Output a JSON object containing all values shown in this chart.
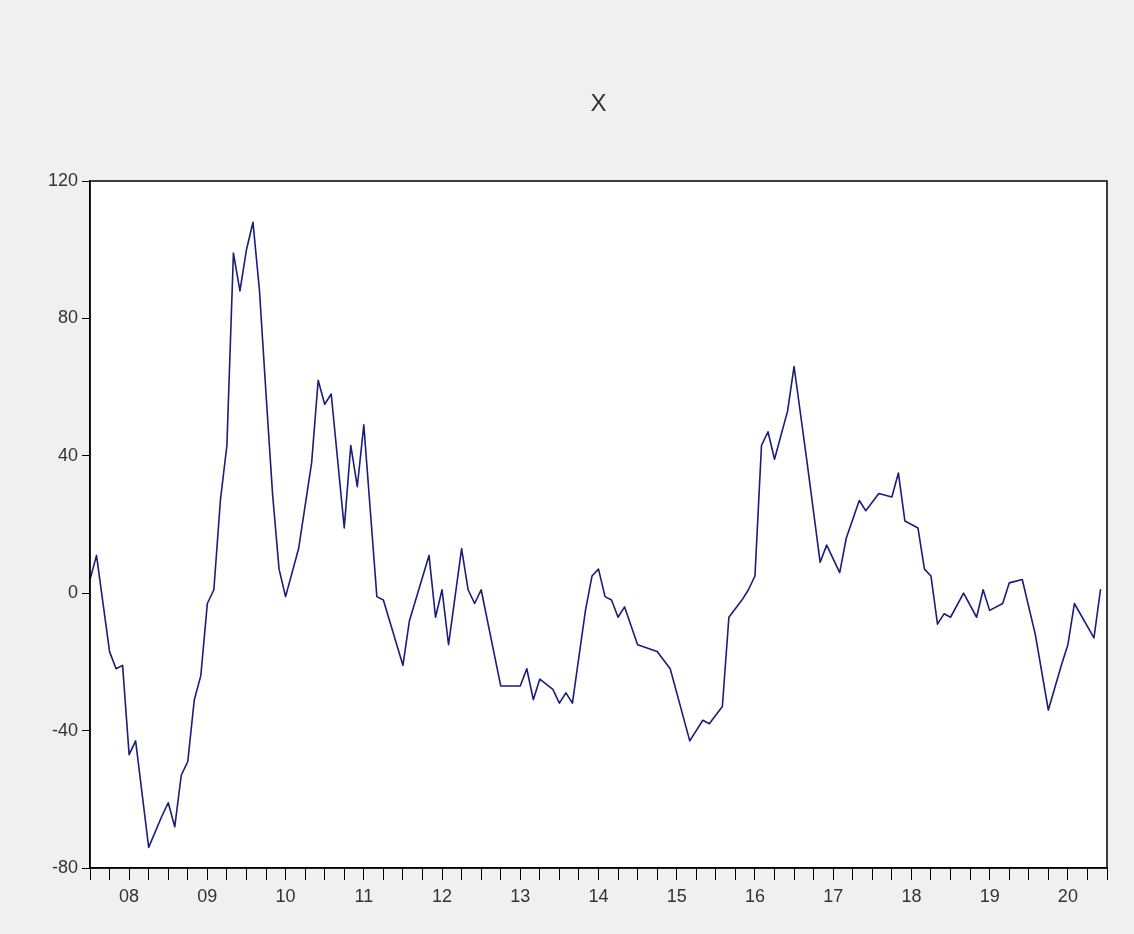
{
  "chart_data": {
    "type": "line",
    "title": "X",
    "x": [
      "2008-01",
      "2008-02",
      "2008-04",
      "2008-05",
      "2008-06",
      "2008-07",
      "2008-08",
      "2008-10",
      "2008-12",
      "2009-01",
      "2009-02",
      "2009-03",
      "2009-04",
      "2009-05",
      "2009-06",
      "2009-07",
      "2009-08",
      "2009-09",
      "2009-10",
      "2009-11",
      "2009-12",
      "2010-01",
      "2010-02",
      "2010-03",
      "2010-04",
      "2010-05",
      "2010-06",
      "2010-07",
      "2010-09",
      "2010-11",
      "2010-12",
      "2011-01",
      "2011-02",
      "2011-04",
      "2011-05",
      "2011-06",
      "2011-07",
      "2011-09",
      "2011-10",
      "2012-01",
      "2012-02",
      "2012-05",
      "2012-06",
      "2012-07",
      "2012-08",
      "2012-10",
      "2012-11",
      "2012-12",
      "2013-01",
      "2013-04",
      "2013-06",
      "2013-07",
      "2013-08",
      "2013-09",
      "2013-10",
      "2013-12",
      "2014-01",
      "2014-02",
      "2014-03",
      "2014-05",
      "2014-06",
      "2014-07",
      "2014-08",
      "2014-09",
      "2014-10",
      "2014-11",
      "2015-01",
      "2015-04",
      "2015-06",
      "2015-09",
      "2015-11",
      "2015-12",
      "2016-02",
      "2016-03",
      "2016-05",
      "2016-06",
      "2016-07",
      "2016-08",
      "2016-09",
      "2016-10",
      "2016-12",
      "2017-01",
      "2017-03",
      "2017-05",
      "2017-06",
      "2017-08",
      "2017-09",
      "2017-11",
      "2017-12",
      "2018-02",
      "2018-04",
      "2018-05",
      "2018-06",
      "2018-08",
      "2018-09",
      "2018-10",
      "2018-11",
      "2018-12",
      "2019-01",
      "2019-03",
      "2019-05",
      "2019-06",
      "2019-07",
      "2019-09",
      "2019-10",
      "2019-12",
      "2020-02",
      "2020-04",
      "2020-06",
      "2020-07",
      "2020-08",
      "2020-11",
      "2020-12"
    ],
    "series": [
      {
        "color": "#1c1c7a",
        "values": [
          4,
          11,
          -17,
          -22,
          -21,
          -47,
          -43,
          -74,
          -65,
          -61,
          -68,
          -53,
          -49,
          -31,
          -24,
          -3,
          1,
          27,
          43,
          99,
          88,
          100,
          108,
          88,
          58,
          29,
          7,
          -1,
          13,
          38,
          62,
          55,
          58,
          19,
          43,
          31,
          49,
          -1,
          -2,
          -21,
          -8,
          11,
          -7,
          1,
          -15,
          13,
          1,
          -3,
          1,
          -27,
          -27,
          -27,
          -22,
          -31,
          -25,
          -28,
          -32,
          -29,
          -32,
          -5,
          5,
          7,
          -1,
          -2,
          -7,
          -4,
          -15,
          -17,
          -22,
          -43,
          -37,
          -38,
          -33,
          -7,
          -2,
          1,
          5,
          43,
          47,
          39,
          53,
          66,
          38,
          9,
          14,
          6,
          16,
          27,
          24,
          29,
          28,
          35,
          21,
          19,
          7,
          5,
          -9,
          -6,
          -7,
          0,
          -7,
          1,
          -5,
          -3,
          3,
          4,
          -12,
          -34,
          -21,
          -15,
          -3,
          -13,
          1
        ]
      }
    ],
    "xlim": [
      "2008-01",
      "2021-01"
    ],
    "xticks": [
      {
        "value": "2008-01",
        "label": null
      },
      {
        "value": "2008-04",
        "label": null
      },
      {
        "value": "2008-07",
        "label": "08"
      },
      {
        "value": "2008-10",
        "label": null
      },
      {
        "value": "2009-01",
        "label": null
      },
      {
        "value": "2009-04",
        "label": null
      },
      {
        "value": "2009-07",
        "label": "09"
      },
      {
        "value": "2009-10",
        "label": null
      },
      {
        "value": "2010-01",
        "label": null
      },
      {
        "value": "2010-04",
        "label": null
      },
      {
        "value": "2010-07",
        "label": "10"
      },
      {
        "value": "2010-10",
        "label": null
      },
      {
        "value": "2011-01",
        "label": null
      },
      {
        "value": "2011-04",
        "label": null
      },
      {
        "value": "2011-07",
        "label": "11"
      },
      {
        "value": "2011-10",
        "label": null
      },
      {
        "value": "2012-01",
        "label": null
      },
      {
        "value": "2012-04",
        "label": null
      },
      {
        "value": "2012-07",
        "label": "12"
      },
      {
        "value": "2012-10",
        "label": null
      },
      {
        "value": "2013-01",
        "label": null
      },
      {
        "value": "2013-04",
        "label": null
      },
      {
        "value": "2013-07",
        "label": "13"
      },
      {
        "value": "2013-10",
        "label": null
      },
      {
        "value": "2014-01",
        "label": null
      },
      {
        "value": "2014-04",
        "label": null
      },
      {
        "value": "2014-07",
        "label": "14"
      },
      {
        "value": "2014-10",
        "label": null
      },
      {
        "value": "2015-01",
        "label": null
      },
      {
        "value": "2015-04",
        "label": null
      },
      {
        "value": "2015-07",
        "label": "15"
      },
      {
        "value": "2015-10",
        "label": null
      },
      {
        "value": "2016-01",
        "label": null
      },
      {
        "value": "2016-04",
        "label": null
      },
      {
        "value": "2016-07",
        "label": "16"
      },
      {
        "value": "2016-10",
        "label": null
      },
      {
        "value": "2017-01",
        "label": null
      },
      {
        "value": "2017-04",
        "label": null
      },
      {
        "value": "2017-07",
        "label": "17"
      },
      {
        "value": "2017-10",
        "label": null
      },
      {
        "value": "2018-01",
        "label": null
      },
      {
        "value": "2018-04",
        "label": null
      },
      {
        "value": "2018-07",
        "label": "18"
      },
      {
        "value": "2018-10",
        "label": null
      },
      {
        "value": "2019-01",
        "label": null
      },
      {
        "value": "2019-04",
        "label": null
      },
      {
        "value": "2019-07",
        "label": "19"
      },
      {
        "value": "2019-10",
        "label": null
      },
      {
        "value": "2020-01",
        "label": null
      },
      {
        "value": "2020-04",
        "label": null
      },
      {
        "value": "2020-07",
        "label": "20"
      },
      {
        "value": "2020-10",
        "label": null
      },
      {
        "value": "2021-01",
        "label": null
      }
    ],
    "ylim": [
      -80,
      120
    ],
    "yticks": [
      -80,
      -40,
      0,
      40,
      80,
      120
    ],
    "grid": false,
    "legend": false,
    "marker": "none",
    "line_style": "solid"
  }
}
